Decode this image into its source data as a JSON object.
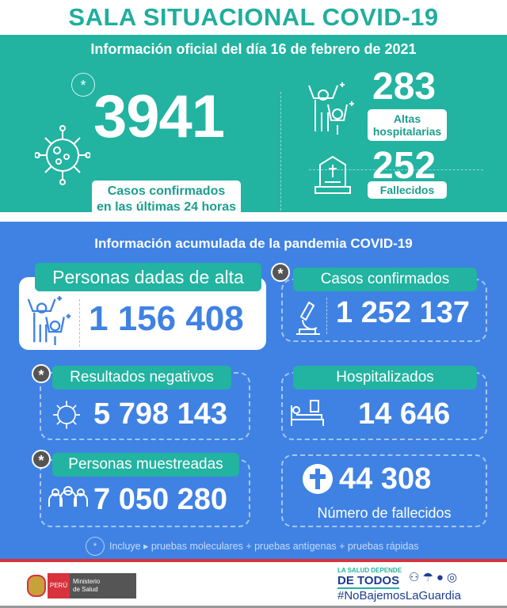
{
  "title": "SALA SITUACIONAL COVID-19",
  "daily": {
    "header": "Información oficial del día 16 de febrero de 2021",
    "cases": "3941",
    "cases_label_1": "Casos confirmados",
    "cases_label_2": "en las últimas 24 horas",
    "discharges": "283",
    "discharges_label_1": "Altas",
    "discharges_label_2": "hospitalarias",
    "deaths": "252",
    "deaths_label": "Fallecidos"
  },
  "cumulative": {
    "header": "Información acumulada de la pandemia COVID-19",
    "discharged_label": "Personas dadas de alta",
    "discharged": "1 156 408",
    "confirmed_label": "Casos confirmados",
    "confirmed": "1 252 137",
    "negative_label": "Resultados negativos",
    "negative": "5 798 143",
    "hospitalized_label": "Hospitalizados",
    "hospitalized": "14 646",
    "sampled_label": "Personas muestreadas",
    "sampled": "7 050 280",
    "deaths": "44 308",
    "deaths_label": "Número de fallecidos",
    "footnote": "Incluye ▸ pruebas moleculares + pruebas antígenas + pruebas rápidas",
    "asterisk": "*"
  },
  "footer": {
    "peru": "PERÚ",
    "ministry_1": "Ministerio",
    "ministry_2": "de Salud",
    "slogan_1": "LA SALUD DEPENDE",
    "slogan_2": "DE TODOS",
    "hashtag": "#NoBajemosLaGuardia"
  },
  "colors": {
    "teal": "#22b3a1",
    "blue": "#3f82e3",
    "red": "#d8323c"
  }
}
